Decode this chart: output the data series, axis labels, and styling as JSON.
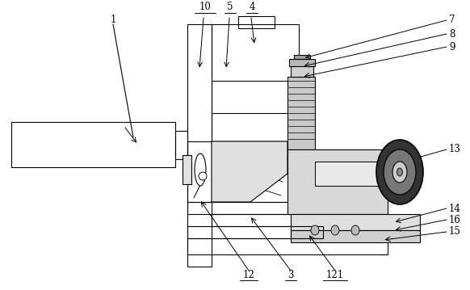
{
  "bg": "#ffffff",
  "lc": "#000000",
  "figsize": [
    5.82,
    3.59
  ],
  "dpi": 100,
  "lw": 0.8,
  "fs": 8.5
}
